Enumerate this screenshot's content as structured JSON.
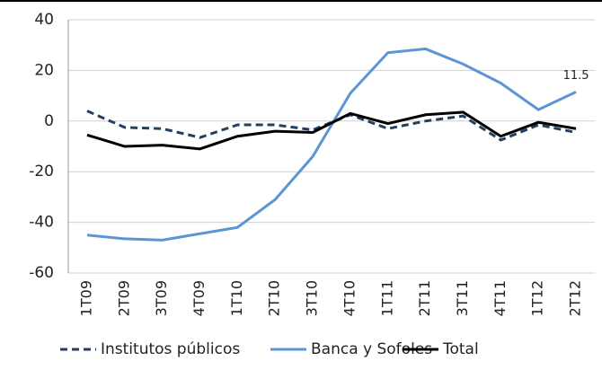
{
  "chart_data": {
    "type": "line",
    "categories": [
      "1T09",
      "2T09",
      "3T09",
      "4T09",
      "1T10",
      "2T10",
      "3T10",
      "4T10",
      "1T11",
      "2T11",
      "3T11",
      "4T11",
      "1T12",
      "2T12"
    ],
    "series": [
      {
        "name": "Institutos públicos",
        "color": "#243f60",
        "dashed": true,
        "values": [
          4,
          -2.5,
          -3,
          -6.5,
          -1.5,
          -1.5,
          -3.5,
          2.5,
          -3,
          0,
          2,
          -7.5,
          -1.5,
          -4.5
        ]
      },
      {
        "name": "Banca y Sofoles",
        "color": "#5b95d5",
        "dashed": false,
        "values": [
          -45,
          -46.5,
          -47,
          -44.5,
          -42,
          -31,
          -14,
          11,
          27,
          28.5,
          22.5,
          15,
          4.5,
          11.5
        ]
      },
      {
        "name": "Total",
        "color": "#000000",
        "dashed": false,
        "values": [
          -5.5,
          -10,
          -9.5,
          -11,
          -6,
          -4,
          -4.5,
          3,
          -1,
          2.5,
          3.5,
          -6,
          -0.5,
          -3
        ]
      }
    ],
    "ylim": [
      -60,
      40
    ],
    "yticks": [
      -60,
      -40,
      -20,
      0,
      20,
      40
    ],
    "grid": true
  }
}
